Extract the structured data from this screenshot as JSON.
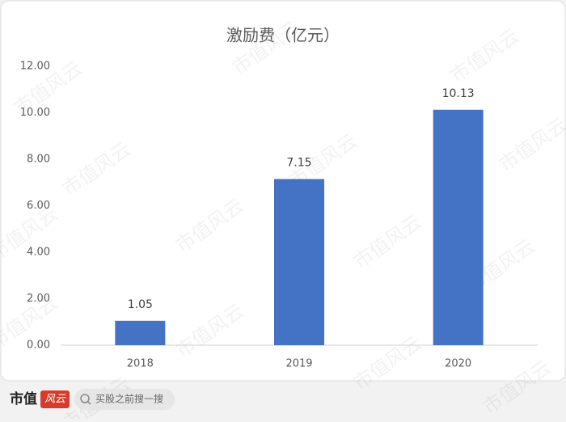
{
  "chart_data": {
    "type": "bar",
    "title": "激励费（亿元）",
    "categories": [
      "2018",
      "2019",
      "2020"
    ],
    "values": [
      1.05,
      7.15,
      10.13
    ],
    "color": "#4472c4",
    "ylim": [
      0,
      12
    ],
    "yticks": [
      {
        "value": 0,
        "label": "0.00"
      },
      {
        "value": 2,
        "label": "2.00"
      },
      {
        "value": 4,
        "label": "4.00"
      },
      {
        "value": 6,
        "label": "6.00"
      },
      {
        "value": 8,
        "label": "8.00"
      },
      {
        "value": 10,
        "label": "10.00"
      },
      {
        "value": 12,
        "label": "12.00"
      }
    ],
    "grid": false
  },
  "watermark": "市值风云",
  "footer": {
    "brand": "市值",
    "logo": "风云",
    "search": "买股之前搜一搜"
  }
}
